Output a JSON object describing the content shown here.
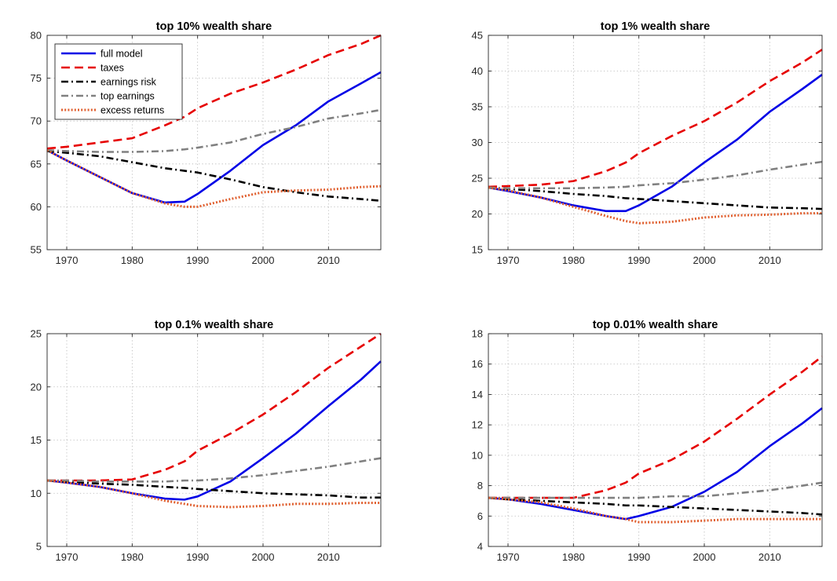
{
  "figure": {
    "legend": [
      {
        "key": "full_model",
        "label": "full model",
        "color": "#0000e6",
        "style": "solid"
      },
      {
        "key": "taxes",
        "label": "taxes",
        "color": "#e60000",
        "style": "dashed"
      },
      {
        "key": "earnings_risk",
        "label": "earnings risk",
        "color": "#000000",
        "style": "dashdot"
      },
      {
        "key": "top_earnings",
        "label": "top earnings",
        "color": "#808080",
        "style": "dashdot"
      },
      {
        "key": "excess_returns",
        "label": "excess returns",
        "color": "#e06030",
        "style": "dotted"
      }
    ]
  },
  "chart_data": [
    {
      "type": "line",
      "title": "top 10% wealth share",
      "xlim": [
        1967,
        2018
      ],
      "ylim": [
        55,
        80
      ],
      "xticks": [
        1970,
        1980,
        1990,
        2000,
        2010
      ],
      "yticks": [
        55,
        60,
        65,
        70,
        75,
        80
      ],
      "grid": true,
      "legend_position": "top-left",
      "x": [
        1967,
        1970,
        1975,
        1980,
        1985,
        1988,
        1990,
        1995,
        2000,
        2005,
        2010,
        2015,
        2018
      ],
      "series": [
        {
          "key": "full_model",
          "name": "full model",
          "values": [
            66.6,
            65.4,
            63.5,
            61.6,
            60.5,
            60.6,
            61.5,
            64.2,
            67.2,
            69.5,
            72.3,
            74.4,
            75.7
          ]
        },
        {
          "key": "taxes",
          "name": "taxes",
          "values": [
            66.8,
            67.0,
            67.5,
            68.0,
            69.5,
            70.5,
            71.5,
            73.2,
            74.5,
            76.0,
            77.7,
            79.0,
            80.0
          ]
        },
        {
          "key": "earnings_risk",
          "name": "earnings risk",
          "values": [
            66.5,
            66.3,
            65.9,
            65.2,
            64.5,
            64.2,
            64.0,
            63.2,
            62.3,
            61.7,
            61.2,
            60.9,
            60.7
          ]
        },
        {
          "key": "top_earnings",
          "name": "top earnings",
          "values": [
            66.6,
            66.5,
            66.4,
            66.4,
            66.5,
            66.7,
            66.9,
            67.5,
            68.5,
            69.3,
            70.3,
            70.9,
            71.3
          ]
        },
        {
          "key": "excess_returns",
          "name": "excess returns",
          "values": [
            66.6,
            65.4,
            63.5,
            61.6,
            60.4,
            60.0,
            60.0,
            60.9,
            61.7,
            61.9,
            62.0,
            62.3,
            62.4
          ]
        }
      ]
    },
    {
      "type": "line",
      "title": "top 1% wealth share",
      "xlim": [
        1967,
        2018
      ],
      "ylim": [
        15,
        45
      ],
      "xticks": [
        1970,
        1980,
        1990,
        2000,
        2010
      ],
      "yticks": [
        15,
        20,
        25,
        30,
        35,
        40,
        45
      ],
      "grid": true,
      "x": [
        1967,
        1970,
        1975,
        1980,
        1985,
        1988,
        1990,
        1995,
        2000,
        2005,
        2010,
        2015,
        2018
      ],
      "series": [
        {
          "key": "full_model",
          "name": "full model",
          "values": [
            23.7,
            23.2,
            22.3,
            21.2,
            20.4,
            20.4,
            21.2,
            23.8,
            27.2,
            30.4,
            34.3,
            37.5,
            39.5
          ]
        },
        {
          "key": "taxes",
          "name": "taxes",
          "values": [
            23.8,
            23.9,
            24.1,
            24.6,
            26.0,
            27.2,
            28.5,
            30.9,
            33.0,
            35.6,
            38.6,
            41.2,
            43.0
          ]
        },
        {
          "key": "earnings_risk",
          "name": "earnings risk",
          "values": [
            23.7,
            23.5,
            23.2,
            22.8,
            22.5,
            22.2,
            22.1,
            21.8,
            21.5,
            21.2,
            20.9,
            20.8,
            20.7
          ]
        },
        {
          "key": "top_earnings",
          "name": "top earnings",
          "values": [
            23.7,
            23.6,
            23.6,
            23.6,
            23.7,
            23.8,
            24.0,
            24.3,
            24.8,
            25.4,
            26.2,
            26.9,
            27.3
          ]
        },
        {
          "key": "excess_returns",
          "name": "excess returns",
          "values": [
            23.7,
            23.3,
            22.3,
            21.0,
            19.7,
            19.0,
            18.7,
            18.9,
            19.5,
            19.8,
            19.9,
            20.1,
            20.1
          ]
        }
      ]
    },
    {
      "type": "line",
      "title": "top 0.1% wealth share",
      "xlim": [
        1967,
        2018
      ],
      "ylim": [
        5,
        25
      ],
      "xticks": [
        1970,
        1980,
        1990,
        2000,
        2010
      ],
      "yticks": [
        5,
        10,
        15,
        20,
        25
      ],
      "grid": true,
      "x": [
        1967,
        1970,
        1975,
        1980,
        1985,
        1988,
        1990,
        1995,
        2000,
        2005,
        2010,
        2015,
        2018
      ],
      "series": [
        {
          "key": "full_model",
          "name": "full model",
          "values": [
            11.2,
            11.0,
            10.6,
            10.0,
            9.5,
            9.4,
            9.7,
            11.1,
            13.3,
            15.6,
            18.2,
            20.7,
            22.4
          ]
        },
        {
          "key": "taxes",
          "name": "taxes",
          "values": [
            11.2,
            11.2,
            11.2,
            11.3,
            12.2,
            13.0,
            14.0,
            15.6,
            17.4,
            19.5,
            21.8,
            23.8,
            25.0
          ]
        },
        {
          "key": "earnings_risk",
          "name": "earnings risk",
          "values": [
            11.2,
            11.1,
            10.9,
            10.8,
            10.6,
            10.5,
            10.4,
            10.2,
            10.0,
            9.9,
            9.8,
            9.6,
            9.6
          ]
        },
        {
          "key": "top_earnings",
          "name": "top earnings",
          "values": [
            11.2,
            11.2,
            11.1,
            11.1,
            11.1,
            11.2,
            11.2,
            11.4,
            11.7,
            12.1,
            12.5,
            13.0,
            13.3
          ]
        },
        {
          "key": "excess_returns",
          "name": "excess returns",
          "values": [
            11.2,
            11.0,
            10.6,
            10.0,
            9.3,
            9.0,
            8.8,
            8.7,
            8.8,
            9.0,
            9.0,
            9.1,
            9.1
          ]
        }
      ]
    },
    {
      "type": "line",
      "title": "top 0.01% wealth share",
      "xlim": [
        1967,
        2018
      ],
      "ylim": [
        4,
        18
      ],
      "xticks": [
        1970,
        1980,
        1990,
        2000,
        2010
      ],
      "yticks": [
        4,
        6,
        8,
        10,
        12,
        14,
        16,
        18
      ],
      "grid": true,
      "x": [
        1967,
        1970,
        1975,
        1980,
        1985,
        1988,
        1990,
        1995,
        2000,
        2005,
        2010,
        2015,
        2018
      ],
      "series": [
        {
          "key": "full_model",
          "name": "full model",
          "values": [
            7.2,
            7.1,
            6.8,
            6.4,
            6.0,
            5.8,
            6.0,
            6.6,
            7.6,
            8.9,
            10.6,
            12.1,
            13.1
          ]
        },
        {
          "key": "taxes",
          "name": "taxes",
          "values": [
            7.2,
            7.2,
            7.2,
            7.2,
            7.7,
            8.2,
            8.8,
            9.7,
            10.9,
            12.4,
            14.0,
            15.5,
            16.5
          ]
        },
        {
          "key": "earnings_risk",
          "name": "earnings risk",
          "values": [
            7.2,
            7.1,
            7.0,
            6.9,
            6.8,
            6.7,
            6.7,
            6.6,
            6.5,
            6.4,
            6.3,
            6.2,
            6.1
          ]
        },
        {
          "key": "top_earnings",
          "name": "top earnings",
          "values": [
            7.2,
            7.2,
            7.2,
            7.2,
            7.2,
            7.2,
            7.2,
            7.3,
            7.3,
            7.5,
            7.7,
            8.0,
            8.2
          ]
        },
        {
          "key": "excess_returns",
          "name": "excess returns",
          "values": [
            7.2,
            7.1,
            6.9,
            6.5,
            6.0,
            5.8,
            5.6,
            5.6,
            5.7,
            5.8,
            5.8,
            5.8,
            5.8
          ]
        }
      ]
    }
  ]
}
